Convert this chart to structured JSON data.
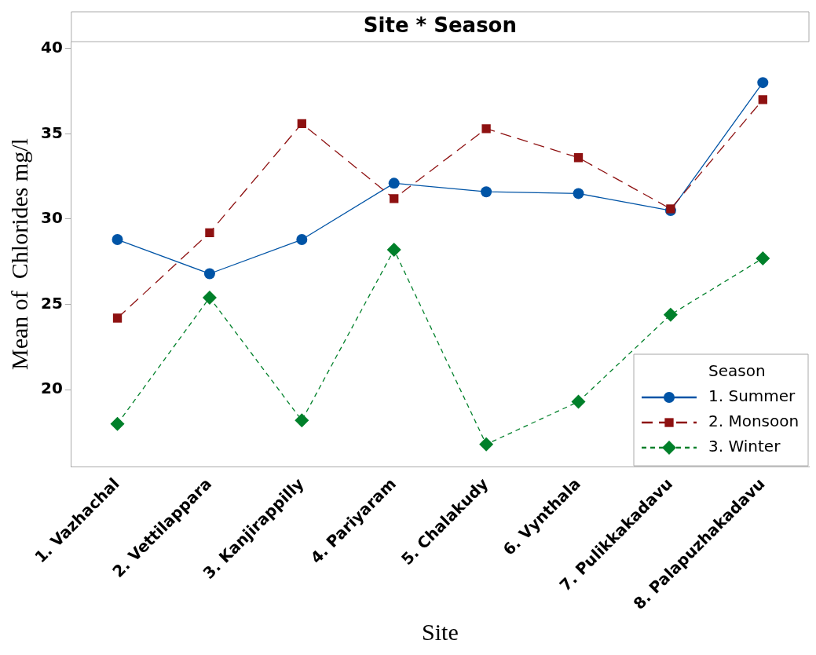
{
  "chart_data": {
    "type": "line",
    "title": "Site * Season",
    "xlabel": "Site",
    "ylabel": "Mean of  Chlorides mg/l",
    "legend_title": "Season",
    "legend": "bottom right",
    "grid": false,
    "categories": [
      "1. Vazhachal",
      "2. Vettilappara",
      "3. Kanjirappilly",
      "4. Pariyaram",
      "5. Chalakudy",
      "6. Vynthala",
      "7. Pulikkakadavu",
      "8. Palapuzhakadavu"
    ],
    "ylim": [
      15.5,
      40.4
    ],
    "yticks": [
      20,
      25,
      30,
      35,
      40
    ],
    "series": [
      {
        "name": "1. Summer",
        "color": "#0054a6",
        "marker": "circle",
        "line_style": "solid",
        "values": [
          28.8,
          26.8,
          28.8,
          32.1,
          31.6,
          31.5,
          30.5,
          38.0
        ]
      },
      {
        "name": "2. Monsoon",
        "color": "#8e1111",
        "marker": "square",
        "line_style": "dashed",
        "values": [
          24.2,
          29.2,
          35.6,
          31.2,
          35.3,
          33.6,
          30.6,
          37.0
        ]
      },
      {
        "name": "3. Winter",
        "color": "#00802a",
        "marker": "diamond",
        "line_style": "dotted",
        "values": [
          18.0,
          25.4,
          18.2,
          28.2,
          16.8,
          19.3,
          24.4,
          27.7
        ]
      }
    ]
  }
}
